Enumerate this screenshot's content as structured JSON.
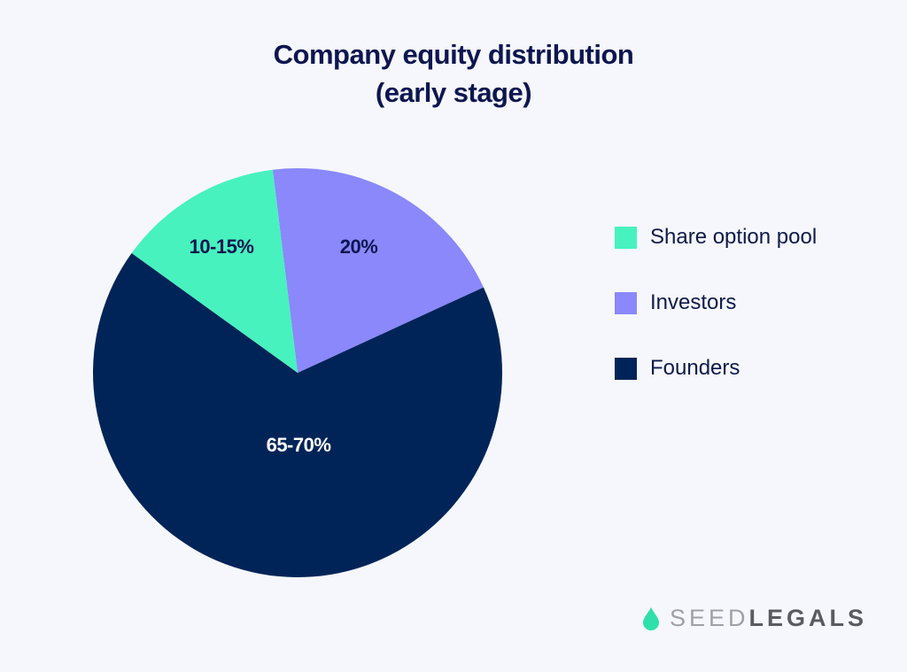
{
  "title": {
    "line1": "Company equity distribution",
    "line2": "(early stage)"
  },
  "chart_data": {
    "type": "pie",
    "title": "Company equity distribution (early stage)",
    "categories": [
      "Share option pool",
      "Investors",
      "Founders"
    ],
    "values": [
      13,
      20,
      67
    ],
    "labels": [
      "10-15%",
      "20%",
      "65-70%"
    ],
    "colors": [
      "#47f2be",
      "#8a88fb",
      "#012458"
    ],
    "start_angles_deg": [
      305.8,
      -7,
      65.3
    ],
    "end_angles_deg": [
      353,
      65.3,
      305.8
    ],
    "legend_position": "right"
  },
  "slices": [
    {
      "label": "10-15%",
      "color": "#47f2be",
      "text_color": "#0d1650"
    },
    {
      "label": "20%",
      "color": "#8a88fb",
      "text_color": "#0d1650"
    },
    {
      "label": "65-70%",
      "color": "#012458",
      "text_color": "#ffffff"
    }
  ],
  "legend": {
    "items": [
      {
        "label": "Share option pool",
        "color": "#47f2be"
      },
      {
        "label": "Investors",
        "color": "#8a88fb"
      },
      {
        "label": "Founders",
        "color": "#012458"
      }
    ]
  },
  "brand": {
    "logo_icon": "drop-icon",
    "seed": "SEED",
    "legals": "LEGALS",
    "accent": "#2fe0a8"
  }
}
